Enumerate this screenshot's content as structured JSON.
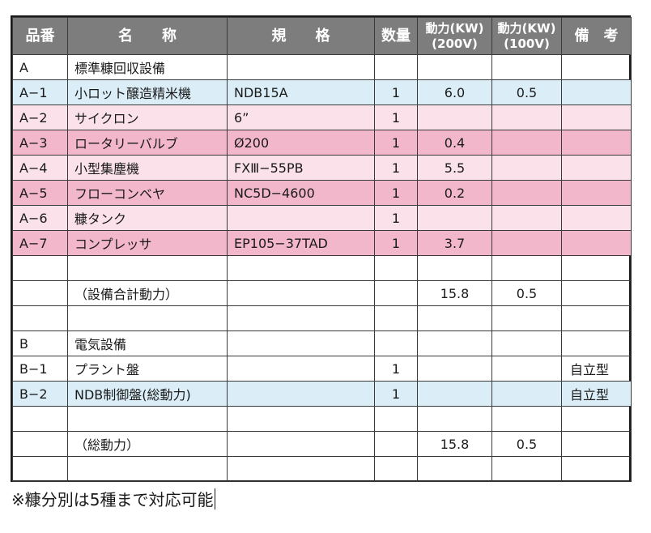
{
  "headers": {
    "code": "品番",
    "name": "名　　称",
    "spec": "規　　格",
    "qty": "数量",
    "p200_l1": "動力(KW)",
    "p200_l2": "(200V)",
    "p100_l1": "動力(KW)",
    "p100_l2": "(100V)",
    "note": "備　考"
  },
  "rows": [
    {
      "code": "A",
      "name": "標準糠回収設備",
      "spec": "",
      "qty": "",
      "p200": "",
      "p100": "",
      "note": "",
      "tone": "white"
    },
    {
      "code": "A−1",
      "name": "小ロット醸造精米機",
      "spec": "NDB15A",
      "qty": "1",
      "p200": "6.0",
      "p100": "0.5",
      "note": "",
      "tone": "blue"
    },
    {
      "code": "A−2",
      "name": "サイクロン",
      "spec": "6”",
      "qty": "1",
      "p200": "",
      "p100": "",
      "note": "",
      "tone": "pink-light"
    },
    {
      "code": "A−3",
      "name": "ロータリーバルブ",
      "spec": "Ø200",
      "qty": "1",
      "p200": "0.4",
      "p100": "",
      "note": "",
      "tone": "pink-dark"
    },
    {
      "code": "A−4",
      "name": "小型集塵機",
      "spec": "FXⅢ−55PB",
      "qty": "1",
      "p200": "5.5",
      "p100": "",
      "note": "",
      "tone": "pink-light"
    },
    {
      "code": "A−5",
      "name": "フローコンベヤ",
      "spec": "NC5D−4600",
      "qty": "1",
      "p200": "0.2",
      "p100": "",
      "note": "",
      "tone": "pink-dark"
    },
    {
      "code": "A−6",
      "name": "糠タンク",
      "spec": "",
      "qty": "1",
      "p200": "",
      "p100": "",
      "note": "",
      "tone": "pink-light"
    },
    {
      "code": "A−7",
      "name": "コンプレッサ",
      "spec": "EP105−37TAD",
      "qty": "1",
      "p200": "3.7",
      "p100": "",
      "note": "",
      "tone": "pink-dark"
    },
    {
      "code": "",
      "name": "",
      "spec": "",
      "qty": "",
      "p200": "",
      "p100": "",
      "note": "",
      "tone": "white"
    },
    {
      "code": "",
      "name": "（設備合計動力）",
      "spec": "",
      "qty": "",
      "p200": "15.8",
      "p100": "0.5",
      "note": "",
      "tone": "white"
    },
    {
      "code": "",
      "name": "",
      "spec": "",
      "qty": "",
      "p200": "",
      "p100": "",
      "note": "",
      "tone": "white"
    },
    {
      "code": "B",
      "name": "電気設備",
      "spec": "",
      "qty": "",
      "p200": "",
      "p100": "",
      "note": "",
      "tone": "white"
    },
    {
      "code": "B−1",
      "name": "プラント盤",
      "spec": "",
      "qty": "1",
      "p200": "",
      "p100": "",
      "note": "自立型",
      "tone": "white"
    },
    {
      "code": "B−2",
      "name": "NDB制御盤(総動力)",
      "spec": "",
      "qty": "1",
      "p200": "",
      "p100": "",
      "note": "自立型",
      "tone": "blue"
    },
    {
      "code": "",
      "name": "",
      "spec": "",
      "qty": "",
      "p200": "",
      "p100": "",
      "note": "",
      "tone": "white"
    },
    {
      "code": "",
      "name": "（総動力）",
      "spec": "",
      "qty": "",
      "p200": "15.8",
      "p100": "0.5",
      "note": "",
      "tone": "white"
    },
    {
      "code": "",
      "name": "",
      "spec": "",
      "qty": "",
      "p200": "",
      "p100": "",
      "note": "",
      "tone": "white"
    }
  ],
  "footnote": "※糠分別は5種まで対応可能"
}
